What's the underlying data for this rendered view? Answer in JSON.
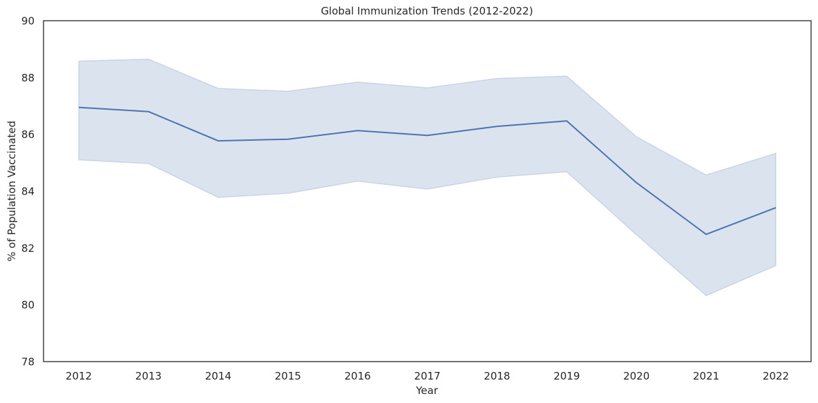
{
  "chart_data": {
    "type": "line",
    "title": "Global Immunization Trends (2012-2022)",
    "xlabel": "Year",
    "ylabel": "% of Population Vaccinated",
    "x": [
      2012,
      2013,
      2014,
      2015,
      2016,
      2017,
      2018,
      2019,
      2020,
      2021,
      2022
    ],
    "x_tick_labels": [
      "2012",
      "2013",
      "2014",
      "2015",
      "2016",
      "2017",
      "2018",
      "2019",
      "2020",
      "2021",
      "2022"
    ],
    "series": [
      {
        "values": [
          86.95,
          86.8,
          85.77,
          85.83,
          86.13,
          85.96,
          86.28,
          86.47,
          84.3,
          82.48,
          83.42
        ],
        "ci_upper": [
          88.58,
          88.65,
          87.62,
          87.52,
          87.84,
          87.64,
          87.97,
          88.05,
          85.92,
          84.57,
          85.33
        ],
        "ci_lower": [
          85.1,
          84.97,
          83.78,
          83.92,
          84.35,
          84.07,
          84.49,
          84.68,
          82.46,
          80.32,
          81.38
        ]
      }
    ],
    "ylim": [
      78,
      90
    ],
    "y_ticks": [
      78,
      80,
      82,
      84,
      86,
      88,
      90
    ],
    "grid": false,
    "line_color": "#4c72b0",
    "band_color": "#4c72b0"
  }
}
